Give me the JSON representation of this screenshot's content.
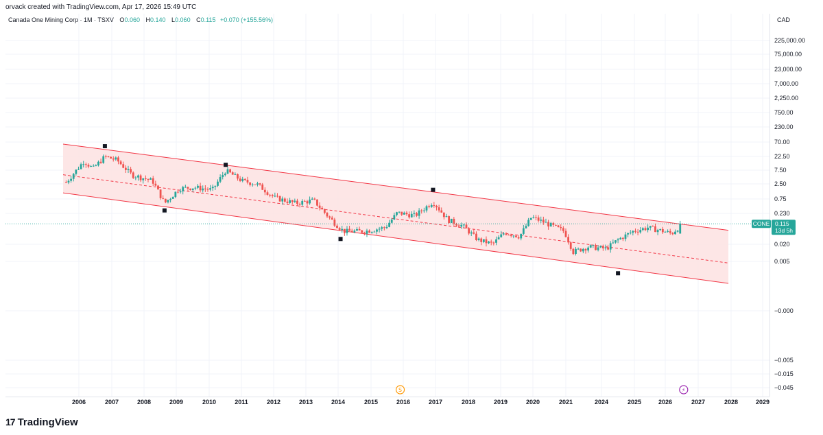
{
  "header": {
    "created_by": "orvack created with TradingView.com, Apr 17, 2026 15:49 UTC"
  },
  "legend": {
    "symbol_title": "Canada One Mining Corp · 1M · TSXV",
    "o_label": "O",
    "o_value": "0.060",
    "h_label": "H",
    "h_value": "0.140",
    "l_label": "L",
    "l_value": "0.060",
    "c_label": "C",
    "c_value": "0.115",
    "change": "+0.070 (+155.56%)"
  },
  "currency": "CAD",
  "price_tag": {
    "symbol": "CONE",
    "price": "0.115",
    "countdown": "13d 5h"
  },
  "branding": {
    "logo_text": "TradingView",
    "logo_mark": "17"
  },
  "colors": {
    "up": "#26a69a",
    "down": "#ef5350",
    "channel_fill": "#fde2e2",
    "channel_line": "#f23645",
    "grid": "#f0f3fa",
    "tag_bg": "#26a69a"
  },
  "icons": {
    "dividend": "S",
    "earnings": "⚡"
  },
  "chart_data": {
    "type": "candlestick",
    "title": "Canada One Mining Corp · 1M · TSXV",
    "yscale": "log",
    "y_tick_labels": [
      "225,000.00",
      "75,000.00",
      "23,000.00",
      "7,000.00",
      "2,250.00",
      "750.00",
      "230.00",
      "70.00",
      "22.50",
      "7.50",
      "2.50",
      "0.75",
      "0.230",
      "0.020",
      "0.005",
      "−0.000",
      "−0.005",
      "−0.015",
      "−0.045"
    ],
    "x_tick_labels": [
      "2006",
      "2007",
      "2008",
      "2009",
      "2010",
      "2011",
      "2012",
      "2013",
      "2014",
      "2015",
      "2016",
      "2017",
      "2018",
      "2019",
      "2020",
      "2021",
      "2024",
      "2025",
      "2026",
      "2027",
      "2028",
      "2029"
    ],
    "channel": {
      "upper": {
        "start": {
          "x": 2005.5,
          "y": 23.0
        },
        "end": {
          "x": 2027.8,
          "y": 0.075
        }
      },
      "mid": {
        "start": {
          "x": 2005.5,
          "y": 3.0
        },
        "end": {
          "x": 2027.8,
          "y": 0.0085
        }
      },
      "lower": {
        "start": {
          "x": 2005.5,
          "y": 0.9
        },
        "end": {
          "x": 2027.8,
          "y": 0.0022
        }
      }
    },
    "pivot_markers": [
      {
        "x": 2006.9,
        "y": 20
      },
      {
        "x": 2008.9,
        "y": 0.28
      },
      {
        "x": 2010.95,
        "y": 5.8
      },
      {
        "x": 2014.8,
        "y": 0.042
      },
      {
        "x": 2017.9,
        "y": 1.1
      },
      {
        "x": 2024.1,
        "y": 0.0043
      }
    ],
    "events": [
      {
        "type": "dividend",
        "x": 2016.8
      },
      {
        "type": "earnings",
        "x": 2026.3
      }
    ],
    "anchors": [
      {
        "x": 2005.6,
        "y": 1.8
      },
      {
        "x": 2006.2,
        "y": 7.5
      },
      {
        "x": 2006.5,
        "y": 4.5
      },
      {
        "x": 2006.9,
        "y": 10.0
      },
      {
        "x": 2007.3,
        "y": 8.0
      },
      {
        "x": 2007.8,
        "y": 3.0
      },
      {
        "x": 2008.5,
        "y": 2.0
      },
      {
        "x": 2008.9,
        "y": 0.45
      },
      {
        "x": 2009.4,
        "y": 1.2
      },
      {
        "x": 2009.9,
        "y": 1.3
      },
      {
        "x": 2010.5,
        "y": 1.1
      },
      {
        "x": 2010.95,
        "y": 4.0
      },
      {
        "x": 2011.5,
        "y": 2.0
      },
      {
        "x": 2012.0,
        "y": 1.6
      },
      {
        "x": 2012.6,
        "y": 0.65
      },
      {
        "x": 2013.3,
        "y": 0.45
      },
      {
        "x": 2013.9,
        "y": 0.55
      },
      {
        "x": 2014.4,
        "y": 0.18
      },
      {
        "x": 2014.9,
        "y": 0.07
      },
      {
        "x": 2015.6,
        "y": 0.07
      },
      {
        "x": 2016.3,
        "y": 0.09
      },
      {
        "x": 2016.7,
        "y": 0.24
      },
      {
        "x": 2017.3,
        "y": 0.2
      },
      {
        "x": 2017.9,
        "y": 0.5
      },
      {
        "x": 2018.4,
        "y": 0.15
      },
      {
        "x": 2018.9,
        "y": 0.1
      },
      {
        "x": 2019.4,
        "y": 0.04
      },
      {
        "x": 2019.9,
        "y": 0.03
      },
      {
        "x": 2020.3,
        "y": 0.065
      },
      {
        "x": 2020.8,
        "y": 0.05
      },
      {
        "x": 2021.2,
        "y": 0.18
      },
      {
        "x": 2021.6,
        "y": 0.13
      },
      {
        "x": 2022.3,
        "y": 0.07
      },
      {
        "x": 2022.6,
        "y": 0.018
      },
      {
        "x": 2023.1,
        "y": 0.025
      },
      {
        "x": 2023.7,
        "y": 0.022
      },
      {
        "x": 2024.1,
        "y": 0.04
      },
      {
        "x": 2024.6,
        "y": 0.07
      },
      {
        "x": 2025.1,
        "y": 0.09
      },
      {
        "x": 2025.5,
        "y": 0.075
      },
      {
        "x": 2025.9,
        "y": 0.06
      },
      {
        "x": 2026.25,
        "y": 0.115
      }
    ],
    "last_price": 0.115
  }
}
